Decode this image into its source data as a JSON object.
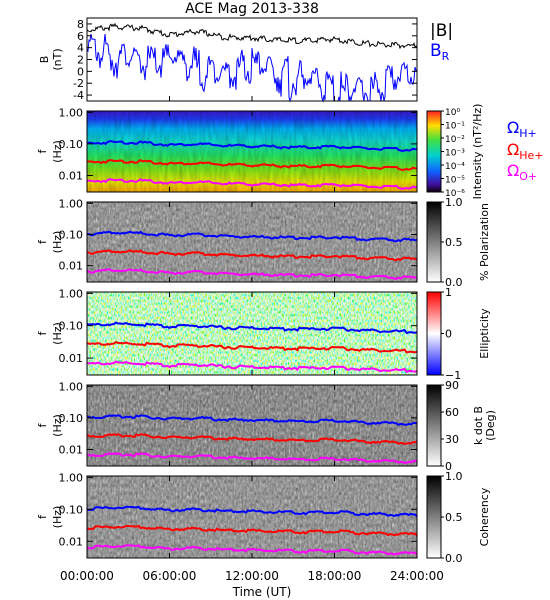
{
  "title": "ACE Mag 2013-338",
  "xlabel": "Time (UT)",
  "colors": {
    "blue": "#0000ff",
    "red": "#ff0000",
    "magenta": "#ff00ff",
    "black": "#000000"
  },
  "chart_data": [
    {
      "type": "line",
      "panel": "magnetic-field",
      "ylabel_top": "B",
      "ylabel_bottom": "(nT)",
      "ylim": [
        -5,
        9
      ],
      "yticks": [
        "8",
        "6",
        "4",
        "2",
        "0",
        "-2",
        "-4"
      ],
      "x": [
        "00:00:00",
        "02:00:00",
        "04:00:00",
        "06:00:00",
        "08:00:00",
        "10:00:00",
        "12:00:00",
        "14:00:00",
        "16:00:00",
        "18:00:00",
        "20:00:00",
        "22:00:00",
        "24:00:00"
      ],
      "series": [
        {
          "name": "|B|",
          "color": "#000000",
          "values": [
            7.2,
            7.8,
            7.5,
            6.4,
            7.0,
            6.0,
            5.9,
            5.5,
            5.4,
            5.7,
            5.0,
            4.7,
            4.5
          ]
        },
        {
          "name": "B_R",
          "color": "#0000ff",
          "values": [
            5.6,
            4.2,
            2.8,
            3.5,
            2.4,
            0.8,
            2.6,
            1.0,
            0.0,
            -1.5,
            -2.0,
            -0.6,
            1.8
          ]
        }
      ],
      "legend": [
        "|B|",
        "B_R"
      ]
    },
    {
      "type": "heatmap",
      "panel": "power-spectrum",
      "ylabel_top": "f",
      "ylabel_bottom": "(Hz)",
      "yscale": "log",
      "ylim": [
        0.003,
        1.1
      ],
      "yticks": [
        "1.00",
        "0.10",
        "0.01"
      ],
      "colorbar_label": "Intensity (nT²/Hz)",
      "colorbar_ticks": [
        "10⁰",
        "10⁻¹",
        "10⁻²",
        "10⁻³",
        "10⁻⁴",
        "10⁻⁵",
        "10⁻⁶"
      ],
      "legend": [
        "ΩH+",
        "ΩHe+",
        "ΩO+"
      ]
    },
    {
      "type": "heatmap",
      "panel": "polarization",
      "ylabel_top": "f",
      "ylabel_bottom": "(Hz)",
      "yscale": "log",
      "ylim": [
        0.003,
        1.1
      ],
      "yticks": [
        "1.00",
        "0.10",
        "0.01"
      ],
      "colorbar_label": "% Polarization",
      "colorbar_ticks": [
        "1.0",
        "0.5",
        "0.0"
      ]
    },
    {
      "type": "heatmap",
      "panel": "ellipticity",
      "ylabel_top": "f",
      "ylabel_bottom": "(Hz)",
      "yscale": "log",
      "ylim": [
        0.003,
        1.1
      ],
      "yticks": [
        "1.00",
        "0.10",
        "0.01"
      ],
      "colorbar_label": "Ellipticity",
      "colorbar_ticks": [
        "1",
        "0",
        "−1"
      ]
    },
    {
      "type": "heatmap",
      "panel": "k-dot-b",
      "ylabel_top": "f",
      "ylabel_bottom": "(Hz)",
      "yscale": "log",
      "ylim": [
        0.003,
        1.1
      ],
      "yticks": [
        "1.00",
        "0.10",
        "0.01"
      ],
      "colorbar_label": "k dot B (Deg)",
      "colorbar_label_lines": [
        "k dot B",
        "(Deg)"
      ],
      "colorbar_ticks": [
        "90",
        "60",
        "30",
        "0"
      ]
    },
    {
      "type": "heatmap",
      "panel": "coherency",
      "ylabel_top": "f",
      "ylabel_bottom": "(Hz)",
      "yscale": "log",
      "ylim": [
        0.003,
        1.1
      ],
      "yticks": [
        "1.00",
        "0.10",
        "0.01"
      ],
      "colorbar_label": "Coherency",
      "colorbar_ticks": [
        "1.0",
        "0.5",
        "0.0"
      ]
    }
  ],
  "gyrofrequency_hz": {
    "x": [
      "00:00:00",
      "02:00:00",
      "04:00:00",
      "06:00:00",
      "08:00:00",
      "10:00:00",
      "12:00:00",
      "14:00:00",
      "16:00:00",
      "18:00:00",
      "20:00:00",
      "22:00:00",
      "24:00:00"
    ],
    "H+": [
      0.11,
      0.12,
      0.115,
      0.098,
      0.105,
      0.092,
      0.09,
      0.084,
      0.082,
      0.087,
      0.076,
      0.072,
      0.068
    ],
    "He+": [
      0.028,
      0.03,
      0.029,
      0.025,
      0.026,
      0.023,
      0.0225,
      0.021,
      0.0205,
      0.0218,
      0.019,
      0.018,
      0.017
    ],
    "O+": [
      0.0069,
      0.0075,
      0.0072,
      0.0061,
      0.0066,
      0.0058,
      0.0056,
      0.0053,
      0.0051,
      0.0054,
      0.0048,
      0.0045,
      0.0043
    ]
  },
  "xticks": [
    "00:00:00",
    "06:00:00",
    "12:00:00",
    "18:00:00",
    "24:00:00"
  ]
}
